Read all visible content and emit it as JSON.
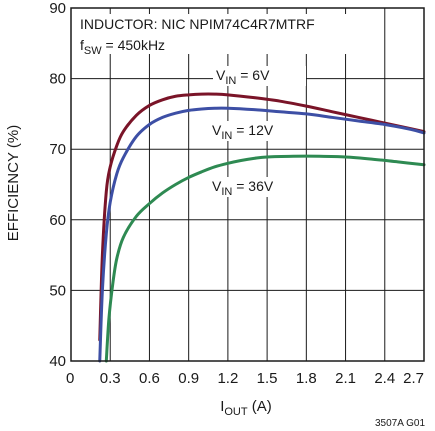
{
  "chart_data": {
    "type": "line",
    "annotation": {
      "inductor": "INDUCTOR: NIC NPIM74C4R7MTRF",
      "fsw": {
        "prefix": "f",
        "sub": "SW",
        "suffix": " = 450kHz"
      }
    },
    "xlabel": {
      "prefix": "I",
      "sub": "OUT",
      "suffix": " (A)"
    },
    "ylabel": "EFFICIENCY (%)",
    "xlim": [
      0,
      2.7
    ],
    "ylim": [
      40,
      90
    ],
    "x_ticks": [
      "0",
      "0.3",
      "0.6",
      "0.9",
      "1.2",
      "1.5",
      "1.8",
      "2.1",
      "2.4",
      "2.7"
    ],
    "y_ticks": [
      "40",
      "50",
      "60",
      "70",
      "80",
      "90"
    ],
    "grid": true,
    "figure_code": "3507A G01",
    "series": [
      {
        "name": "6V",
        "label": {
          "prefix": "V",
          "sub": "IN",
          "suffix": " = 6V"
        },
        "color": "#7a1428",
        "x": [
          0.22,
          0.24,
          0.27,
          0.3,
          0.35,
          0.4,
          0.5,
          0.6,
          0.7,
          0.8,
          0.9,
          1.0,
          1.1,
          1.2,
          1.4,
          1.6,
          1.8,
          2.0,
          2.2,
          2.4,
          2.6,
          2.7
        ],
        "y": [
          43,
          55,
          64,
          67.5,
          70.5,
          72.5,
          74.8,
          76.2,
          77.0,
          77.5,
          77.7,
          77.8,
          77.8,
          77.7,
          77.3,
          76.8,
          76.1,
          75.3,
          74.5,
          73.7,
          72.9,
          72.5
        ]
      },
      {
        "name": "12V",
        "label": {
          "prefix": "V",
          "sub": "IN",
          "suffix": " = 12V"
        },
        "color": "#3d4fa5",
        "x": [
          0.22,
          0.24,
          0.27,
          0.3,
          0.35,
          0.4,
          0.5,
          0.6,
          0.7,
          0.8,
          0.9,
          1.0,
          1.1,
          1.2,
          1.4,
          1.6,
          1.8,
          2.0,
          2.2,
          2.4,
          2.6,
          2.7
        ],
        "y": [
          40,
          50,
          58,
          62.5,
          66.5,
          68.8,
          71.8,
          73.5,
          74.5,
          75.1,
          75.5,
          75.7,
          75.8,
          75.8,
          75.6,
          75.3,
          75.0,
          74.5,
          74.0,
          73.5,
          72.8,
          72.3
        ]
      },
      {
        "name": "36V",
        "label": {
          "prefix": "V",
          "sub": "IN",
          "suffix": " = 36V"
        },
        "color": "#2e8a52",
        "x": [
          0.27,
          0.29,
          0.32,
          0.35,
          0.4,
          0.5,
          0.6,
          0.7,
          0.8,
          0.9,
          1.0,
          1.1,
          1.2,
          1.3,
          1.4,
          1.5,
          1.7,
          1.9,
          2.1,
          2.3,
          2.5,
          2.7
        ],
        "y": [
          40,
          46,
          51,
          54.5,
          57.5,
          60.5,
          62.3,
          63.8,
          65.0,
          66.0,
          66.8,
          67.5,
          68.0,
          68.4,
          68.7,
          68.9,
          69.0,
          69.0,
          68.9,
          68.6,
          68.2,
          67.8
        ]
      }
    ]
  }
}
